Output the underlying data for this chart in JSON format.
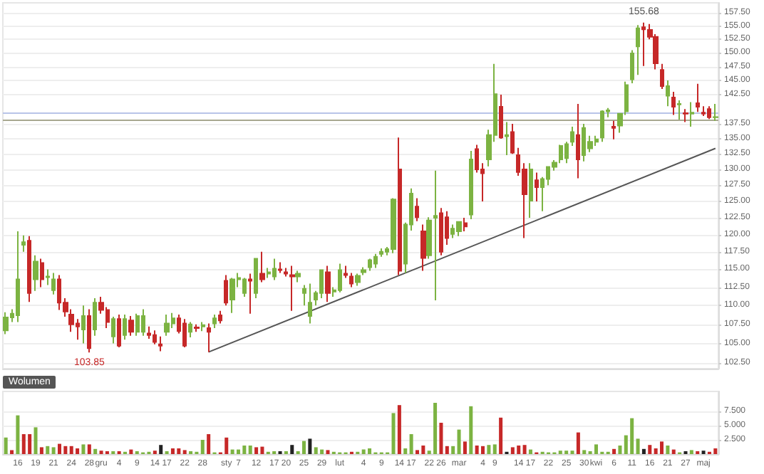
{
  "chart_data": [
    {
      "type": "candlestick",
      "categories": [
        null,
        null,
        null,
        null,
        null,
        null,
        null,
        null,
        null,
        null,
        null,
        null,
        null,
        null,
        null,
        null,
        null,
        null,
        null,
        null,
        null,
        null,
        null,
        null,
        null,
        null,
        null,
        null,
        null,
        null,
        null,
        null,
        null,
        null,
        null,
        null,
        null,
        null,
        null,
        null,
        null,
        null,
        null,
        null,
        null,
        null,
        null,
        null,
        null,
        null,
        null,
        null,
        null,
        null,
        null,
        null,
        null,
        null,
        null,
        null,
        null,
        null,
        null,
        null,
        null,
        null,
        null,
        null,
        null,
        null,
        null,
        null,
        null,
        null,
        null,
        null,
        null,
        null,
        null,
        null,
        null,
        null,
        null,
        null,
        null,
        null,
        null,
        null,
        null,
        null,
        null,
        null,
        null,
        null,
        null,
        null,
        null,
        null,
        null,
        null,
        null,
        null,
        null,
        null,
        null,
        null,
        null,
        null,
        null,
        null,
        null,
        null,
        null,
        null,
        null,
        null,
        null,
        null,
        null,
        null
      ],
      "ohlc": [
        [
          106.7,
          109.1,
          106.2,
          108.4
        ],
        [
          108.4,
          109.5,
          107.8,
          108.9
        ],
        [
          108.7,
          120.5,
          107.8,
          113.6
        ],
        [
          118.5,
          119.9,
          117.5,
          118.9
        ],
        [
          119.1,
          119.8,
          110.5,
          111.7
        ],
        [
          113.6,
          117,
          112,
          116.1
        ],
        [
          115.9,
          116.5,
          112.5,
          113.6
        ],
        [
          113.9,
          115,
          112.8,
          114
        ],
        [
          112.1,
          114.5,
          111.5,
          113.6
        ],
        [
          113.6,
          114.2,
          109.4,
          110.4
        ],
        [
          110.4,
          111,
          108.5,
          109.2
        ],
        [
          108.8,
          109.5,
          106.5,
          107.5
        ],
        [
          107.6,
          108.2,
          105.5,
          107.2
        ],
        [
          106.8,
          110,
          105,
          108.6
        ],
        [
          108.6,
          109.5,
          103.85,
          104.4
        ],
        [
          106.8,
          111,
          106,
          110.4
        ],
        [
          110.4,
          111.2,
          108.9,
          109.4
        ],
        [
          109.4,
          109.8,
          107,
          107.8
        ],
        [
          105.9,
          108.5,
          105,
          108.2
        ],
        [
          108.2,
          108.8,
          104.5,
          104.7
        ],
        [
          106.1,
          108.8,
          105.5,
          108.2
        ],
        [
          108,
          108.6,
          106,
          106.5
        ],
        [
          106.5,
          108.9,
          106,
          108.6
        ],
        [
          106.5,
          109.5,
          106,
          108.6
        ],
        [
          106.3,
          107.2,
          105.6,
          106.1
        ],
        [
          106.1,
          106.7,
          104.9,
          105.2
        ],
        [
          104.9,
          105.9,
          104,
          104.7
        ],
        [
          106.5,
          108.8,
          106,
          107.6
        ],
        [
          107.6,
          109,
          107,
          108.3
        ],
        [
          108.3,
          108.8,
          106.3,
          106.6
        ],
        [
          107.6,
          108.2,
          104.5,
          104.7
        ],
        [
          106.5,
          107.8,
          105.8,
          107.5
        ],
        [
          107.1,
          107.5,
          106.5,
          107
        ],
        [
          107.2,
          107.8,
          106.6,
          107.4
        ],
        [
          107,
          107.6,
          103.9,
          106.5
        ],
        [
          107.6,
          108.8,
          107,
          108.3
        ],
        [
          108.7,
          109.3,
          107.6,
          108
        ],
        [
          113.4,
          114.2,
          110,
          110.4
        ],
        [
          110.8,
          113.8,
          109,
          113.6
        ],
        [
          113.6,
          114.5,
          112.5,
          113.8
        ],
        [
          111.7,
          113.8,
          111.2,
          113.6
        ],
        [
          113.6,
          114.4,
          108.9,
          113.4
        ],
        [
          111.7,
          116.6,
          111,
          116.5
        ],
        [
          114.4,
          117.5,
          113.2,
          113.6
        ],
        [
          114.4,
          115.2,
          113.8,
          114.6
        ],
        [
          114,
          116.5,
          113.5,
          115.1
        ],
        [
          115,
          116,
          114.5,
          114.9
        ],
        [
          114.6,
          115.2,
          114,
          114.4
        ],
        [
          114.2,
          115.5,
          109.3,
          114
        ],
        [
          114,
          114.8,
          113.2,
          114.4
        ],
        [
          111.7,
          112.8,
          110,
          112.3
        ],
        [
          108.6,
          113,
          107.6,
          110.4
        ],
        [
          110.8,
          112,
          110,
          111.7
        ],
        [
          111.7,
          115,
          111,
          114.9
        ],
        [
          114.6,
          115.5,
          110.5,
          111.7
        ],
        [
          111.9,
          112.5,
          111.2,
          112.1
        ],
        [
          112.1,
          115.8,
          111.8,
          114.9
        ],
        [
          114.4,
          115.5,
          113.8,
          114.2
        ],
        [
          114,
          114.5,
          112.5,
          113
        ],
        [
          113.2,
          114.4,
          112.7,
          114.1
        ],
        [
          114.6,
          115.3,
          114.2,
          114.9
        ],
        [
          115.3,
          116.5,
          114.8,
          116.3
        ],
        [
          115.8,
          117.2,
          115.2,
          116.8
        ],
        [
          117.2,
          118,
          116.8,
          117.5
        ],
        [
          117.5,
          118.2,
          117,
          117.9
        ],
        [
          117.9,
          125.5,
          117.3,
          125.3
        ],
        [
          130,
          135.2,
          114.2,
          114.8
        ],
        [
          115.8,
          121.8,
          114.5,
          121.5
        ],
        [
          121.5,
          127,
          120.6,
          126.2
        ],
        [
          124.2,
          125.5,
          122,
          122.6
        ],
        [
          120.5,
          121.5,
          114.8,
          116.6
        ],
        [
          117,
          122.6,
          116.5,
          122.1
        ],
        [
          122.5,
          129.8,
          110.7,
          122.8
        ],
        [
          123.2,
          124,
          117,
          117.5
        ],
        [
          122.6,
          123.5,
          118.5,
          119.5
        ],
        [
          120.1,
          121.5,
          119.5,
          120.9
        ],
        [
          120.5,
          122,
          119.8,
          121.9
        ],
        [
          121.7,
          122.5,
          120.5,
          121.2
        ],
        [
          123,
          133,
          122.3,
          131.6
        ],
        [
          133.3,
          134,
          129.5,
          130
        ],
        [
          130,
          131,
          125,
          129.4
        ],
        [
          131.6,
          136.5,
          130.5,
          135.6
        ],
        [
          135.6,
          148,
          134.5,
          142.6
        ],
        [
          140.4,
          142.5,
          135,
          135.2
        ],
        [
          135.4,
          137.8,
          132.3,
          135.6
        ],
        [
          136.1,
          137.5,
          132.5,
          132.7
        ],
        [
          132.3,
          133.5,
          129,
          129.6
        ],
        [
          130,
          131,
          119.5,
          126.1
        ],
        [
          125.1,
          131,
          122.5,
          130
        ],
        [
          128.3,
          129.5,
          125,
          127.2
        ],
        [
          127.2,
          128.8,
          123.5,
          128.5
        ],
        [
          128.5,
          130.5,
          127.5,
          130.4
        ],
        [
          130.4,
          131.5,
          129.8,
          131.1
        ],
        [
          131.6,
          134,
          131,
          133.8
        ],
        [
          131.8,
          134.5,
          131,
          134.1
        ],
        [
          134.5,
          137,
          133.8,
          136.1
        ],
        [
          135.6,
          140.9,
          128.6,
          131.6
        ],
        [
          132.3,
          137.5,
          131.3,
          136.8
        ],
        [
          133.4,
          135.5,
          132.8,
          134.5
        ],
        [
          134.5,
          135.5,
          133.8,
          134.9
        ],
        [
          135.2,
          139.8,
          134.5,
          139.6
        ],
        [
          139.6,
          140.2,
          138.6,
          139.8
        ],
        [
          137,
          138,
          134.9,
          136.8
        ],
        [
          137.2,
          139.3,
          136,
          139.2
        ],
        [
          139.6,
          144.8,
          139,
          144.2
        ],
        [
          145.2,
          150.5,
          144.5,
          149.9
        ],
        [
          151.2,
          155.2,
          146,
          154.6
        ],
        [
          154.8,
          155.68,
          147.6,
          154.4
        ],
        [
          154.3,
          155.4,
          152.5,
          153
        ],
        [
          153,
          153.5,
          147,
          148.1
        ],
        [
          146.9,
          148,
          143.5,
          144
        ],
        [
          142.3,
          145,
          140.5,
          144
        ],
        [
          142,
          143,
          139,
          140.4
        ],
        [
          140.8,
          141.5,
          138.2,
          140.9
        ],
        [
          139.3,
          140,
          137.8,
          139.2
        ],
        [
          139.2,
          141.2,
          137,
          139.4
        ],
        [
          141,
          144.4,
          139.5,
          140.4
        ],
        [
          139.4,
          140.5,
          138.8,
          139.2
        ],
        [
          140,
          140.5,
          138.3,
          138.6
        ],
        [
          138.6,
          140.9,
          138,
          138.64
        ]
      ],
      "colors": [
        "#7cb342",
        "#7cb342",
        "#7cb342",
        "#7cb342",
        "#c62828",
        "#7cb342",
        "#c62828",
        "#7cb342",
        "#7cb342",
        "#c62828",
        "#c62828",
        "#c62828",
        "#c62828",
        "#7cb342",
        "#c62828",
        "#7cb342",
        "#c62828",
        "#c62828",
        "#7cb342",
        "#c62828",
        "#7cb342",
        "#c62828",
        "#7cb342",
        "#7cb342",
        "#c62828",
        "#c62828",
        "#c62828",
        "#7cb342",
        "#7cb342",
        "#c62828",
        "#c62828",
        "#7cb342",
        "#c62828",
        "#7cb342",
        "#c62828",
        "#7cb342",
        "#c62828",
        "#c62828",
        "#7cb342",
        "#7cb342",
        "#7cb342",
        "#c62828",
        "#7cb342",
        "#c62828",
        "#7cb342",
        "#7cb342",
        "#c62828",
        "#c62828",
        "#c62828",
        "#7cb342",
        "#7cb342",
        "#7cb342",
        "#7cb342",
        "#7cb342",
        "#c62828",
        "#7cb342",
        "#7cb342",
        "#c62828",
        "#c62828",
        "#7cb342",
        "#7cb342",
        "#7cb342",
        "#7cb342",
        "#7cb342",
        "#7cb342",
        "#7cb342",
        "#c62828",
        "#7cb342",
        "#7cb342",
        "#c62828",
        "#c62828",
        "#7cb342",
        "#7cb342",
        "#c62828",
        "#c62828",
        "#7cb342",
        "#7cb342",
        "#c62828",
        "#7cb342",
        "#c62828",
        "#c62828",
        "#7cb342",
        "#7cb342",
        "#c62828",
        "#7cb342",
        "#c62828",
        "#c62828",
        "#c62828",
        "#7cb342",
        "#c62828",
        "#7cb342",
        "#7cb342",
        "#7cb342",
        "#7cb342",
        "#7cb342",
        "#7cb342",
        "#c62828",
        "#7cb342",
        "#7cb342",
        "#7cb342",
        "#7cb342",
        "#7cb342",
        "#c62828",
        "#7cb342",
        "#7cb342",
        "#7cb342",
        "#7cb342",
        "#c62828",
        "#c62828",
        "#c62828",
        "#c62828",
        "#7cb342",
        "#c62828",
        "#7cb342",
        "#c62828",
        "#7cb342",
        "#c62828",
        "#c62828",
        "#c62828",
        "#7cb342"
      ],
      "series": [
        {
          "type": "line",
          "color": "#555555",
          "values": [
            null,
            null,
            null,
            null,
            null,
            null,
            null,
            null,
            null,
            null,
            null,
            null,
            null,
            null,
            null,
            null,
            null,
            null,
            null,
            null,
            null,
            null,
            null,
            null,
            null,
            null,
            null,
            null,
            null,
            null,
            null,
            null,
            null,
            null,
            103.9,
            null,
            null,
            null,
            null,
            null,
            null,
            null,
            null,
            null,
            null,
            null,
            null,
            null,
            null,
            null,
            null,
            null,
            null,
            null,
            null,
            null,
            null,
            null,
            null,
            null,
            null,
            null,
            null,
            null,
            null,
            null,
            null,
            null,
            null,
            null,
            null,
            null,
            null,
            null,
            null,
            null,
            null,
            null,
            null,
            null,
            null,
            null,
            null,
            null,
            null,
            null,
            null,
            null,
            null,
            null,
            null,
            null,
            null,
            null,
            null,
            null,
            null,
            null,
            null,
            null,
            null,
            null,
            null,
            null,
            null,
            null,
            null,
            null,
            null,
            null,
            null,
            null,
            null,
            null,
            null,
            null,
            null,
            null,
            null,
            133.4
          ]
        }
      ],
      "ylim": [
        101.8,
        159.5
      ],
      "yticks": [
        {
          "value": 102.5,
          "label": "102.50"
        },
        {
          "value": 105,
          "label": "105.00"
        },
        {
          "value": 107.5,
          "label": "107.50"
        },
        {
          "value": 110,
          "label": "110.00"
        },
        {
          "value": 112.5,
          "label": "112.50"
        },
        {
          "value": 115,
          "label": "115.00"
        },
        {
          "value": 117.5,
          "label": "117.50"
        },
        {
          "value": 120,
          "label": "120.00"
        },
        {
          "value": 122.5,
          "label": "122.50"
        },
        {
          "value": 125,
          "label": "125.00"
        },
        {
          "value": 127.5,
          "label": "127.50"
        },
        {
          "value": 130,
          "label": "130.00"
        },
        {
          "value": 132.5,
          "label": "132.50"
        },
        {
          "value": 135,
          "label": "135.00"
        },
        {
          "value": 137.5,
          "label": "137.50"
        },
        {
          "value": 142.5,
          "label": "142.50"
        },
        {
          "value": 145,
          "label": "145.00"
        },
        {
          "value": 147.5,
          "label": "147.50"
        },
        {
          "value": 150,
          "label": "150.00"
        },
        {
          "value": 152.5,
          "label": "152.50"
        },
        {
          "value": 155,
          "label": "155.00"
        },
        {
          "value": 157.5,
          "label": "157.50"
        }
      ],
      "log": true,
      "grid": "y",
      "annotations": [
        {
          "text": "155.68",
          "y": 155.68
        },
        {
          "text": "103.85",
          "y": 103.85
        }
      ],
      "ref_lines": [
        {
          "axis": "y",
          "value": 139.4,
          "color": "#b8c4e8"
        },
        {
          "axis": "y",
          "value": 138.2,
          "color": "#a8a890"
        }
      ]
    },
    {
      "type": "bar",
      "title": "Wolumen",
      "categories": [
        null,
        null,
        "16",
        null,
        null,
        "19",
        null,
        null,
        "21",
        null,
        null,
        "24",
        null,
        null,
        "28",
        null,
        "gru",
        null,
        null,
        "4",
        null,
        null,
        "9",
        null,
        null,
        "14",
        null,
        "17",
        null,
        null,
        "22",
        null,
        null,
        "28",
        null,
        null,
        null,
        "sty",
        null,
        "7",
        null,
        null,
        "12",
        null,
        null,
        "17",
        null,
        "20",
        null,
        null,
        "25",
        null,
        null,
        "29",
        null,
        null,
        "lut",
        null,
        null,
        null,
        "4",
        null,
        null,
        "9",
        null,
        null,
        "14",
        null,
        "17",
        null,
        null,
        "22",
        null,
        "26",
        null,
        null,
        "mar",
        null,
        null,
        null,
        "4",
        null,
        "9",
        null,
        null,
        null,
        "14",
        null,
        "17",
        null,
        null,
        "22",
        null,
        null,
        "25",
        null,
        null,
        "30",
        null,
        "kwi",
        null,
        null,
        "6",
        null,
        null,
        "11",
        null,
        null,
        "16",
        null,
        null,
        "21",
        null,
        null,
        "27",
        null,
        null,
        "maj",
        null,
        null
      ],
      "values": [
        2.9,
        0.7,
        6.8,
        3.5,
        3.5,
        4.7,
        1.2,
        1.4,
        1.2,
        1.8,
        1.4,
        1.4,
        1.0,
        1.7,
        1.7,
        0.9,
        0.6,
        0.5,
        0.5,
        0.5,
        0.4,
        0.8,
        0.5,
        0.3,
        0.4,
        0.6,
        1.6,
        0.5,
        1.0,
        1.0,
        0.7,
        0.5,
        0.4,
        2.5,
        3.5,
        0.3,
        0.3,
        2.9,
        0.8,
        0.8,
        1.5,
        1.5,
        1.2,
        1.3,
        0.4,
        0.5,
        0.5,
        0.5,
        1.6,
        0.5,
        2.3,
        2.7,
        1.2,
        0.8,
        0.7,
        0.4,
        0.3,
        0.3,
        0.4,
        0.4,
        0.8,
        1.0,
        0.3,
        0.3,
        0.3,
        7.2,
        8.6,
        1.0,
        3.5,
        0.7,
        1.5,
        0.6,
        9.0,
        5.5,
        1.4,
        1.4,
        4.3,
        2.2,
        8.4,
        1.5,
        1.4,
        1.6,
        1.7,
        6.4,
        0.4,
        1.2,
        1.5,
        1.6,
        0.8,
        0.3,
        0.4,
        0.3,
        0.3,
        0.6,
        0.6,
        0.6,
        3.8,
        0.7,
        0.5,
        1.7,
        0.4,
        0.4,
        0.9,
        1.5,
        3.3,
        6.3,
        2.7,
        0.9,
        1.6,
        1.0,
        2.2,
        1.5,
        0.8,
        0.3,
        0.5,
        0.7,
        0.5,
        0.6,
        0.4,
        1.0
      ],
      "colors": [
        "#7cb342",
        "#c62828",
        "#7cb342",
        "#c62828",
        "#c62828",
        "#7cb342",
        "#c62828",
        "#7cb342",
        "#7cb342",
        "#c62828",
        "#c62828",
        "#c62828",
        "#c62828",
        "#7cb342",
        "#c62828",
        "#7cb342",
        "#c62828",
        "#c62828",
        "#7cb342",
        "#c62828",
        "#7cb342",
        "#c62828",
        "#7cb342",
        "#7cb342",
        "#7cb342",
        "#c62828",
        "#222222",
        "#7cb342",
        "#c62828",
        "#c62828",
        "#c62828",
        "#7cb342",
        "#7cb342",
        "#7cb342",
        "#c62828",
        "#7cb342",
        "#c62828",
        "#c62828",
        "#7cb342",
        "#7cb342",
        "#7cb342",
        "#7cb342",
        "#c62828",
        "#c62828",
        "#7cb342",
        "#7cb342",
        "#222222",
        "#7cb342",
        "#222222",
        "#7cb342",
        "#7cb342",
        "#222222",
        "#7cb342",
        "#7cb342",
        "#c62828",
        "#7cb342",
        "#7cb342",
        "#7cb342",
        "#c62828",
        "#7cb342",
        "#7cb342",
        "#7cb342",
        "#7cb342",
        "#7cb342",
        "#7cb342",
        "#7cb342",
        "#c62828",
        "#7cb342",
        "#7cb342",
        "#c62828",
        "#c62828",
        "#7cb342",
        "#7cb342",
        "#c62828",
        "#c62828",
        "#7cb342",
        "#7cb342",
        "#c62828",
        "#7cb342",
        "#c62828",
        "#c62828",
        "#7cb342",
        "#7cb342",
        "#c62828",
        "#222222",
        "#c62828",
        "#c62828",
        "#c62828",
        "#7cb342",
        "#c62828",
        "#7cb342",
        "#7cb342",
        "#7cb342",
        "#7cb342",
        "#7cb342",
        "#7cb342",
        "#c62828",
        "#7cb342",
        "#7cb342",
        "#7cb342",
        "#7cb342",
        "#7cb342",
        "#c62828",
        "#7cb342",
        "#7cb342",
        "#7cb342",
        "#7cb342",
        "#222222",
        "#c62828",
        "#c62828",
        "#c62828",
        "#7cb342",
        "#c62828",
        "#7cb342",
        "#222222",
        "#7cb342",
        "#c62828",
        "#222222",
        "#c62828",
        "#c62828"
      ],
      "ylim": [
        0,
        11
      ],
      "yticks": [
        {
          "value": 2.5,
          "label": "2.500"
        },
        {
          "value": 5,
          "label": "5.000"
        },
        {
          "value": 7.5,
          "label": "7.500"
        }
      ],
      "grid": "y"
    }
  ]
}
